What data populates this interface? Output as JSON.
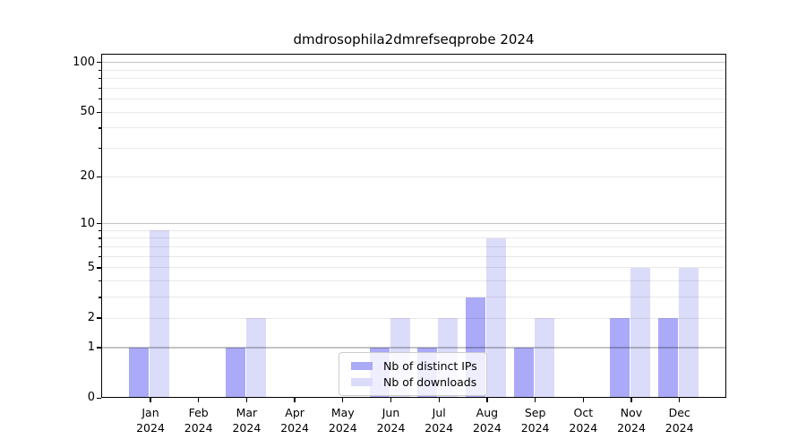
{
  "chart_data": {
    "type": "bar",
    "title": "dmdrosophila2dmrefseqprobe 2024",
    "categories": [
      "Jan 2024",
      "Feb 2024",
      "Mar 2024",
      "Apr 2024",
      "May 2024",
      "Jun 2024",
      "Jul 2024",
      "Aug 2024",
      "Sep 2024",
      "Oct 2024",
      "Nov 2024",
      "Dec 2024"
    ],
    "series": [
      {
        "name": "Nb of distinct IPs",
        "color": "#aaaaf8",
        "values": [
          1,
          0,
          1,
          0,
          0,
          1,
          1,
          3,
          1,
          0,
          2,
          2
        ]
      },
      {
        "name": "Nb of downloads",
        "color": "#dbdbfa",
        "values": [
          9,
          0,
          2,
          0,
          0,
          2,
          2,
          8,
          2,
          0,
          5,
          5
        ]
      }
    ],
    "xlabel": "",
    "ylabel": "",
    "y_axis": {
      "scale": "log10(1+value)",
      "tick_labels": [
        "0",
        "1",
        "2",
        "5",
        "10",
        "20",
        "50",
        "100"
      ],
      "tick_values": [
        0,
        1,
        2,
        5,
        10,
        20,
        50,
        100
      ],
      "major_grid_values": [
        1,
        10,
        100
      ],
      "minor_grid_values": [
        2,
        3,
        4,
        5,
        6,
        7,
        8,
        9,
        20,
        30,
        40,
        50,
        60,
        70,
        80,
        90
      ],
      "ylim": [
        0,
        114
      ]
    },
    "legend": {
      "entries": [
        "Nb of distinct IPs",
        "Nb of downloads"
      ],
      "position": "lower center"
    },
    "grid": true,
    "grid_above_bars": true
  },
  "colors": {
    "bar_distinct_ips": "#aaaaf8",
    "bar_downloads": "#dbdbfa",
    "major_gridline": "#c4c4c4",
    "minor_gridline": "#eaeaea",
    "axis_spine": "#000000",
    "legend_border": "#cccccc",
    "background": "#ffffff"
  }
}
